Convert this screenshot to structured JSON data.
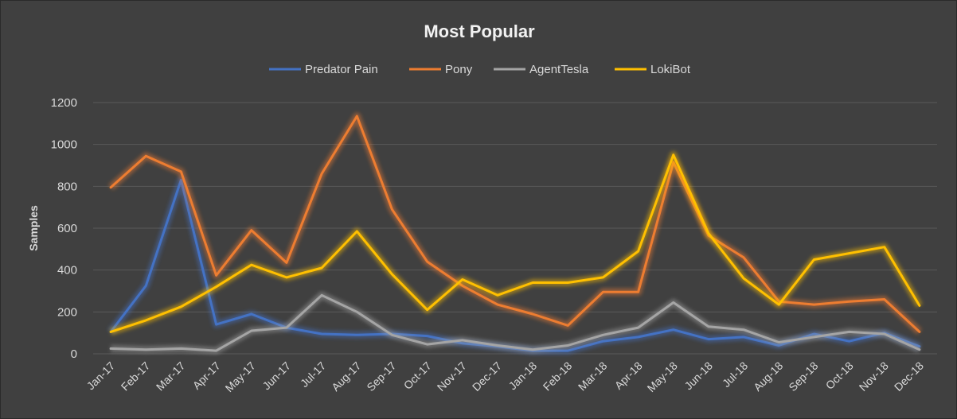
{
  "chart_data": {
    "type": "line",
    "title": "Most Popular",
    "xlabel": "",
    "ylabel": "Samples",
    "ylim": [
      0,
      1200
    ],
    "yticks": [
      0,
      200,
      400,
      600,
      800,
      1000,
      1200
    ],
    "grid": true,
    "legend_position": "top",
    "categories": [
      "Jan-17",
      "Feb-17",
      "Mar-17",
      "Apr-17",
      "May-17",
      "Jun-17",
      "Jul-17",
      "Aug-17",
      "Sep-17",
      "Oct-17",
      "Nov-17",
      "Dec-17",
      "Jan-18",
      "Feb-18",
      "Mar-18",
      "Apr-18",
      "May-18",
      "Jun-18",
      "Jul-18",
      "Aug-18",
      "Sep-18",
      "Oct-18",
      "Nov-18",
      "Dec-18"
    ],
    "series": [
      {
        "name": "Predator Pain",
        "color": "#4472C4",
        "values": [
          105,
          325,
          830,
          140,
          190,
          125,
          95,
          90,
          95,
          85,
          50,
          35,
          15,
          15,
          60,
          80,
          115,
          70,
          80,
          40,
          95,
          60,
          100,
          35
        ]
      },
      {
        "name": "Pony",
        "color": "#ED7D31",
        "values": [
          795,
          945,
          870,
          375,
          590,
          435,
          860,
          1135,
          690,
          440,
          325,
          235,
          190,
          135,
          295,
          295,
          915,
          565,
          460,
          250,
          235,
          250,
          260,
          105
        ]
      },
      {
        "name": "AgentTesla",
        "color": "#A5A5A5",
        "values": [
          25,
          20,
          25,
          15,
          110,
          125,
          280,
          200,
          90,
          45,
          65,
          40,
          20,
          40,
          90,
          125,
          245,
          130,
          115,
          55,
          80,
          105,
          95,
          20
        ]
      },
      {
        "name": "LokiBot",
        "color": "#FFC000",
        "values": [
          105,
          160,
          225,
          320,
          425,
          365,
          410,
          585,
          380,
          210,
          355,
          280,
          340,
          340,
          365,
          490,
          950,
          575,
          360,
          235,
          450,
          480,
          510,
          230
        ]
      }
    ]
  }
}
